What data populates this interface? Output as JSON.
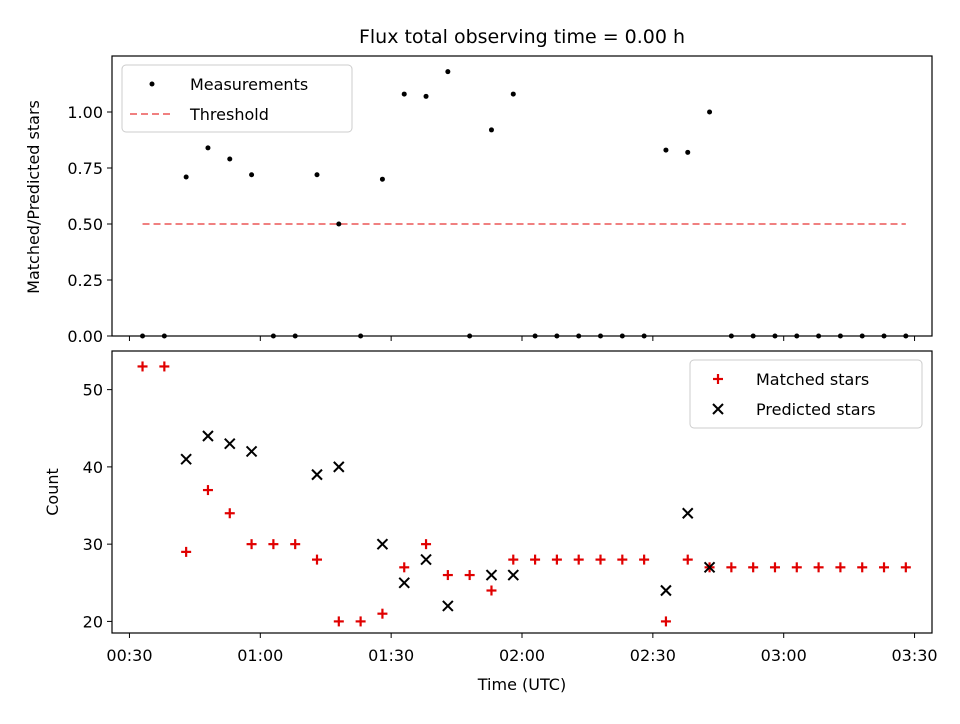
{
  "chart_data": [
    {
      "type": "scatter",
      "title": "Flux total observing time = 0.00 h",
      "ylabel": "Matched/Predicted stars",
      "xlim": [
        "00:26",
        "03:34"
      ],
      "ylim": [
        0,
        1.25
      ],
      "yticks": [
        0.0,
        0.25,
        0.5,
        0.75,
        1.0
      ],
      "ytick_labels": [
        "0.00",
        "0.25",
        "0.50",
        "0.75",
        "1.00"
      ],
      "legend_position": "top-left",
      "series": [
        {
          "name": "Measurements",
          "marker": "dot",
          "color": "#000000",
          "x": [
            "00:33",
            "00:38",
            "00:43",
            "00:48",
            "00:53",
            "00:58",
            "01:03",
            "01:08",
            "01:13",
            "01:18",
            "01:23",
            "01:28",
            "01:33",
            "01:38",
            "01:43",
            "01:48",
            "01:53",
            "01:58",
            "02:03",
            "02:08",
            "02:13",
            "02:18",
            "02:23",
            "02:28",
            "02:33",
            "02:38",
            "02:43",
            "02:48",
            "02:53",
            "02:58",
            "03:03",
            "03:08",
            "03:13",
            "03:18",
            "03:23",
            "03:28"
          ],
          "y": [
            0,
            0,
            0.71,
            0.84,
            0.79,
            0.72,
            0,
            0,
            0.72,
            0.5,
            0,
            0.7,
            1.08,
            1.07,
            1.18,
            0,
            0.92,
            1.08,
            0,
            0,
            0,
            0,
            0,
            0,
            0.83,
            0.82,
            1.0,
            0,
            0,
            0,
            0,
            0,
            0,
            0,
            0,
            0
          ]
        },
        {
          "name": "Threshold",
          "type": "line",
          "style": "dashed",
          "color": "#f08080",
          "x": [
            "00:33",
            "03:28"
          ],
          "y": [
            0.5,
            0.5
          ]
        }
      ]
    },
    {
      "type": "scatter",
      "xlabel": "Time (UTC)",
      "ylabel": "Count",
      "xlim": [
        "00:26",
        "03:34"
      ],
      "ylim": [
        18.5,
        55
      ],
      "yticks": [
        20,
        30,
        40,
        50
      ],
      "xticks": [
        "00:30",
        "01:00",
        "01:30",
        "02:00",
        "02:30",
        "03:00",
        "03:30"
      ],
      "legend_position": "top-right",
      "series": [
        {
          "name": "Matched stars",
          "marker": "plus",
          "color": "#e00000",
          "x": [
            "00:33",
            "00:38",
            "00:43",
            "00:48",
            "00:53",
            "00:58",
            "01:03",
            "01:08",
            "01:13",
            "01:18",
            "01:23",
            "01:28",
            "01:33",
            "01:38",
            "01:43",
            "01:48",
            "01:53",
            "01:58",
            "02:03",
            "02:08",
            "02:13",
            "02:18",
            "02:23",
            "02:28",
            "02:33",
            "02:38",
            "02:43",
            "02:48",
            "02:53",
            "02:58",
            "03:03",
            "03:08",
            "03:13",
            "03:18",
            "03:23",
            "03:28"
          ],
          "y": [
            53,
            53,
            29,
            37,
            34,
            30,
            30,
            30,
            28,
            20,
            20,
            21,
            27,
            30,
            26,
            26,
            24,
            28,
            28,
            28,
            28,
            28,
            28,
            28,
            20,
            28,
            27,
            27,
            27,
            27,
            27,
            27,
            27,
            27,
            27,
            27
          ]
        },
        {
          "name": "Predicted stars",
          "marker": "x",
          "color": "#000000",
          "x": [
            "00:43",
            "00:48",
            "00:53",
            "00:58",
            "01:13",
            "01:18",
            "01:28",
            "01:33",
            "01:38",
            "01:43",
            "01:53",
            "01:58",
            "02:33",
            "02:38",
            "02:43"
          ],
          "y": [
            41,
            44,
            43,
            42,
            39,
            40,
            30,
            25,
            28,
            22,
            26,
            26,
            24,
            34,
            27
          ]
        }
      ]
    }
  ]
}
